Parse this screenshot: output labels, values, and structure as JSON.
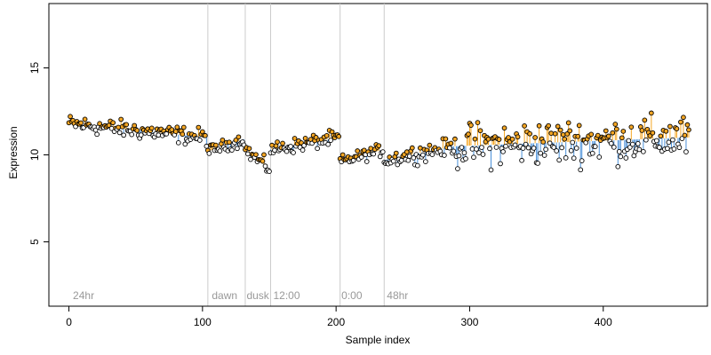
{
  "chart_data": {
    "type": "scatter",
    "title": "",
    "xlabel": "Sample index",
    "ylabel": "Expression",
    "xlim": [
      -15,
      478
    ],
    "ylim": [
      1.3,
      18.7
    ],
    "x_ticks": [
      0,
      100,
      200,
      300,
      400
    ],
    "y_ticks": [
      5,
      10,
      15
    ],
    "grid": false,
    "legend": "none",
    "colors": {
      "point_fill": "#ffffff",
      "point_stroke": "#000000",
      "above_fill": "#f5a623",
      "above_line": "#f5a623",
      "below_fill": "#4a90d9",
      "below_line": "#4a90d9",
      "vline": "#cccccc",
      "text_gray": "#999999"
    },
    "vlines": [
      {
        "x": 104,
        "label": ""
      },
      {
        "x": 132,
        "label": ""
      },
      {
        "x": 151,
        "label": ""
      },
      {
        "x": 203,
        "label": ""
      },
      {
        "x": 236,
        "label": ""
      }
    ],
    "annotations": [
      {
        "x": 3,
        "text": "24hr"
      },
      {
        "x": 107,
        "text": "dawn"
      },
      {
        "x": 133,
        "text": "dusk"
      },
      {
        "x": 153,
        "text": "12:00"
      },
      {
        "x": 204,
        "text": "0:00"
      },
      {
        "x": 238,
        "text": "48hr"
      }
    ],
    "segments": [
      {
        "x0": 0,
        "x1": 104,
        "start": 11.8,
        "end": 11.0,
        "amp": 0.35
      },
      {
        "x0": 104,
        "x1": 132,
        "start": 10.2,
        "end": 10.9,
        "amp": 0.25
      },
      {
        "x0": 132,
        "x1": 151,
        "start": 10.3,
        "end": 9.2,
        "amp": 0.3
      },
      {
        "x0": 151,
        "x1": 203,
        "start": 10.3,
        "end": 11.0,
        "amp": 0.3
      },
      {
        "x0": 203,
        "x1": 236,
        "start": 9.6,
        "end": 10.3,
        "amp": 0.25
      },
      {
        "x0": 236,
        "x1": 290,
        "start": 9.7,
        "end": 10.5,
        "amp": 0.35
      },
      {
        "x0": 290,
        "x1": 465,
        "start": 10.5,
        "end": 11.0,
        "amp": 0.9
      }
    ]
  }
}
